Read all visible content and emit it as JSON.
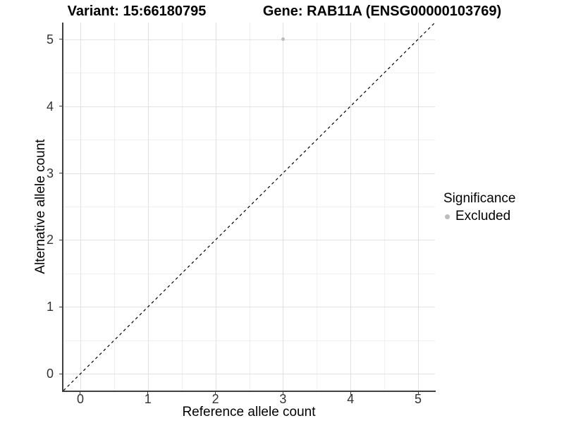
{
  "chart_data": {
    "type": "scatter",
    "titles": [
      "Variant: 15:66180795",
      "Gene: RAB11A (ENSG00000103769)"
    ],
    "xlabel": "Reference allele count",
    "ylabel": "Alternative allele count",
    "x_ticks": [
      0,
      1,
      2,
      3,
      4,
      5
    ],
    "y_ticks": [
      0,
      1,
      2,
      3,
      4,
      5
    ],
    "x_minor": [
      0.5,
      1.5,
      2.5,
      3.5,
      4.5
    ],
    "y_minor": [
      0.5,
      1.5,
      2.5,
      3.5,
      4.5
    ],
    "xlim": [
      -0.25,
      5.25
    ],
    "ylim": [
      -0.25,
      5.25
    ],
    "grid": true,
    "points": [
      {
        "x": 3,
        "y": 5,
        "series": "Excluded"
      }
    ],
    "reference_line": {
      "slope": 1,
      "intercept": 0,
      "style": "dashed",
      "color": "#000000"
    },
    "legend": {
      "title": "Significance",
      "position": "right",
      "entries": [
        {
          "label": "Excluded",
          "marker": "circle",
          "color": "#bdbdbd"
        }
      ]
    }
  },
  "colors": {
    "background": "#ffffff",
    "point": "#bdbdbd",
    "grid_major": "#e2e2e2",
    "grid_minor": "#f0f0f0",
    "axis_line": "#404040",
    "tick_label": "#333333",
    "title_text": "#000000"
  }
}
